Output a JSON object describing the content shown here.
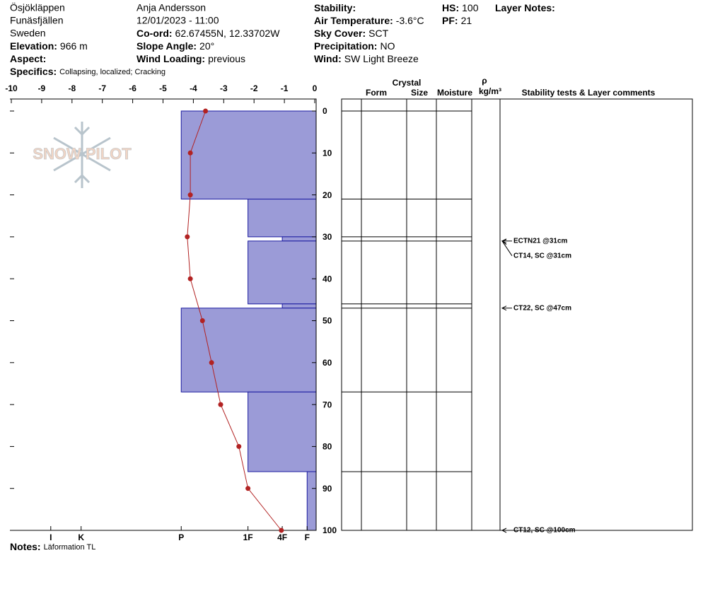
{
  "header": {
    "columns": [
      [
        "Ösjökläppen",
        "Funäsfjällen",
        "Sweden",
        {
          "label": "Elevation:",
          "value": "966 m"
        },
        {
          "label": "Aspect:"
        }
      ],
      [
        "Anja Andersson",
        "12/01/2023 - 11:00",
        {
          "label": "Co-ord:",
          "value": "62.67455N, 12.33702W"
        },
        {
          "label": "Slope Angle:",
          "value": "20°"
        },
        {
          "label": "Wind Loading:",
          "value": "previous"
        }
      ],
      [
        {
          "label": "Stability:"
        },
        {
          "label": "Air Temperature:",
          "value": "-3.6°C"
        },
        {
          "label": "Sky Cover:",
          "value": "SCT"
        },
        {
          "label": "Precipitation:",
          "value": "NO"
        },
        {
          "label": "Wind:",
          "value": "SW Light Breeze"
        }
      ],
      [
        {
          "label": "HS:",
          "value": "100"
        },
        {
          "label": "PF:",
          "value": "21"
        }
      ],
      [
        {
          "label": "Layer Notes:"
        }
      ]
    ],
    "specifics": {
      "label": "Specifics:",
      "value": "Collapsing, localized;  Cracking"
    },
    "logo": "SNOW PILOT"
  },
  "chart_data": {
    "type": "snow-profile",
    "ylim": [
      0,
      100
    ],
    "yticks": [
      0,
      10,
      20,
      30,
      40,
      50,
      60,
      70,
      80,
      90,
      100
    ],
    "xlim": [
      -10,
      0
    ],
    "xticks": [
      -10,
      -9,
      -8,
      -7,
      -6,
      -5,
      -4,
      -3,
      -2,
      -1,
      0
    ],
    "hardness_ticks": [
      {
        "value": -8.7,
        "label": "I"
      },
      {
        "value": -7.7,
        "label": "K"
      },
      {
        "value": -4.4,
        "label": "P"
      },
      {
        "value": -2.2,
        "label": "1F"
      },
      {
        "value": -1.07,
        "label": "4F"
      },
      {
        "value": -0.25,
        "label": "F"
      }
    ],
    "layer_color": "#9b9bd7",
    "layers": [
      {
        "top": 0,
        "bottom": 21,
        "hardness": "P"
      },
      {
        "top": 21,
        "bottom": 30,
        "hardness": "1F"
      },
      {
        "top": 30,
        "bottom": 31,
        "hardness": "4F"
      },
      {
        "top": 31,
        "bottom": 46,
        "hardness": "1F"
      },
      {
        "top": 46,
        "bottom": 47,
        "hardness": "4F"
      },
      {
        "top": 47,
        "bottom": 67,
        "hardness": "P"
      },
      {
        "top": 67,
        "bottom": 86,
        "hardness": "1F"
      },
      {
        "top": 86,
        "bottom": 100,
        "hardness": "F"
      }
    ],
    "temperature": {
      "color": "#b22222",
      "depths": [
        0,
        10,
        20,
        30,
        40,
        50,
        60,
        70,
        80,
        90,
        100
      ],
      "values": [
        -3.6,
        -4.1,
        -4.1,
        -4.2,
        -4.1,
        -3.7,
        -3.4,
        -3.1,
        -2.5,
        -2.2,
        -1.1
      ]
    },
    "table_headers": {
      "crystal": "Crystal",
      "form": "Form",
      "size": "Size",
      "moisture": "Moisture",
      "rho": "ρ",
      "density_unit": "kg/m³",
      "comments": "Stability tests & Layer comments"
    },
    "stability_tests": [
      {
        "label": "ECTN21 @31cm",
        "depth": 31
      },
      {
        "label": "CT14, SC @31cm",
        "depth": 31
      },
      {
        "label": "CT22, SC @47cm",
        "depth": 47
      },
      {
        "label": "CT12, SC @100cm",
        "depth": 100
      }
    ],
    "notes": {
      "label": "Notes:",
      "value": "Läformation TL"
    }
  }
}
